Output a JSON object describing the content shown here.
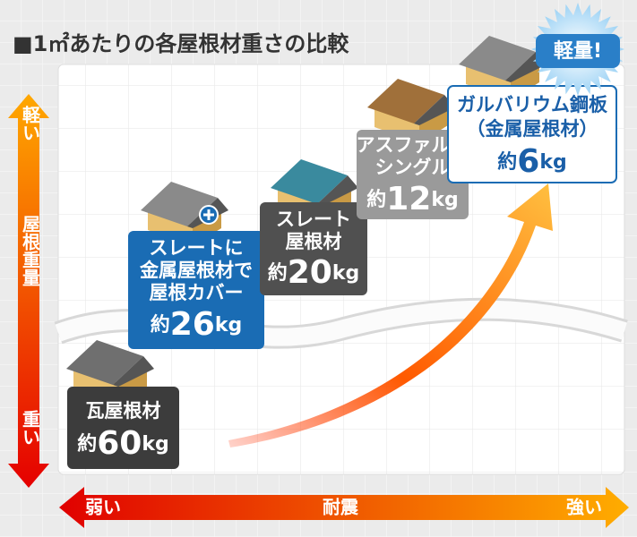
{
  "title": "■1㎡あたりの各屋根材重さの比較",
  "y_axis": {
    "top": "軽い",
    "label": "屋根重量",
    "bottom": "重い"
  },
  "x_axis": {
    "left": "弱い",
    "label": "耐震",
    "right": "強い"
  },
  "badge": "軽量!",
  "items": [
    {
      "lines": [
        "瓦屋根材"
      ],
      "prefix": "約",
      "weight": "60",
      "unit": "kg"
    },
    {
      "lines": [
        "スレートに",
        "金属屋根材で",
        "屋根カバー"
      ],
      "prefix": "約",
      "weight": "26",
      "unit": "kg"
    },
    {
      "lines": [
        "スレート",
        "屋根材"
      ],
      "prefix": "約",
      "weight": "20",
      "unit": "kg"
    },
    {
      "lines": [
        "アスファルト",
        "シングル"
      ],
      "prefix": "約",
      "weight": "12",
      "unit": "kg"
    },
    {
      "lines": [
        "ガルバリウム鋼板",
        "（金属屋根材）"
      ],
      "prefix": "約",
      "weight": "6",
      "unit": "kg"
    }
  ]
}
